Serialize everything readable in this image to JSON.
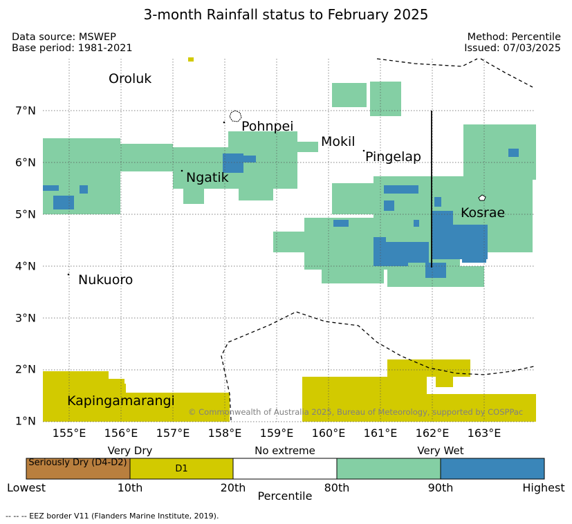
{
  "title": "3-month Rainfall status to February 2025",
  "meta": {
    "data_source": "Data source: MSWEP",
    "base_period": "Base period: 1981-2021",
    "method": "Method: Percentile",
    "issued": "Issued: 07/03/2025"
  },
  "axes": {
    "x_ticks": [
      "155°E",
      "156°E",
      "157°E",
      "158°E",
      "159°E",
      "160°E",
      "161°E",
      "162°E",
      "163°E"
    ],
    "y_ticks": [
      "7°N",
      "6°N",
      "5°N",
      "4°N",
      "3°N",
      "2°N",
      "1°N"
    ]
  },
  "places": {
    "oroluk": "Oroluk",
    "pohnpei": "Pohnpei",
    "mokil": "Mokil",
    "pingelap": "Pingelap",
    "ngatik": "Ngatik",
    "kosrae": "Kosrae",
    "nukuoro": "Nukuoro",
    "kapingamarangi": "Kapingamarangi"
  },
  "copyright": "© Commonwealth of Australia 2025, Bureau of Meteorology, supported by COSPPac",
  "legend": {
    "categories": [
      {
        "label": "Very Dry",
        "color": "#d2ca00"
      },
      {
        "label": "No extreme",
        "color": "#ffffff"
      },
      {
        "label": "Very Wet",
        "color": "#84cfa4"
      }
    ],
    "segments": [
      {
        "label": "Seriously Dry (D4-D2)",
        "color": "#b97f3e"
      },
      {
        "label": "D1",
        "color": "#d2ca00"
      },
      {
        "label": "",
        "color": "#ffffff"
      },
      {
        "label": "",
        "color": "#84cfa4"
      },
      {
        "label": "",
        "color": "#3a86b9"
      }
    ],
    "ticks": [
      "Lowest",
      "10th",
      "20th",
      "80th",
      "90th",
      "Highest"
    ],
    "axis_title": "Percentile"
  },
  "footnote": "--  --  -- EEZ border V11 (Flanders Marine Institute, 2019).",
  "colors": {
    "very_dry": "#d2ca00",
    "very_wet": "#84cfa4",
    "highest": "#3a86b9",
    "seriously_dry": "#b97f3e"
  }
}
